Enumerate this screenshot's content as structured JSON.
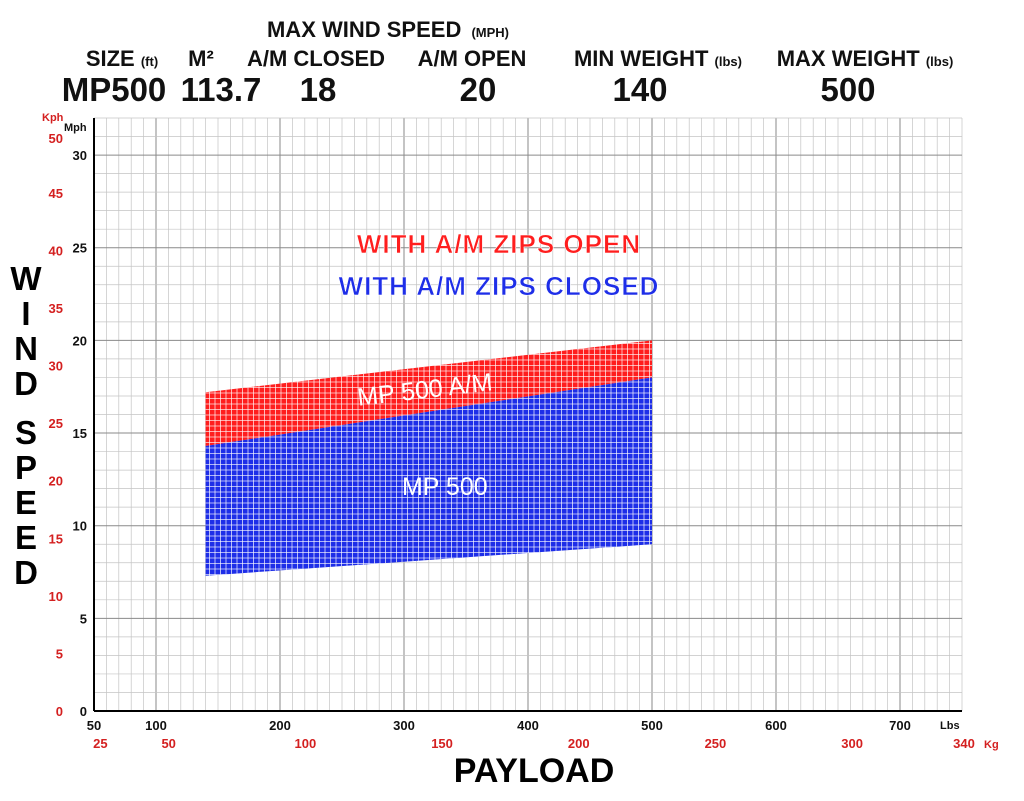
{
  "header": {
    "size_label": "SIZE",
    "size_unit": "(ft)",
    "area_label": "M²",
    "max_wind_label": "MAX WIND SPEED",
    "max_wind_unit": "(MPH)",
    "am_closed_label": "A/M CLOSED",
    "am_open_label": "A/M OPEN",
    "min_weight_label": "MIN WEIGHT",
    "min_weight_unit": "(lbs)",
    "max_weight_label": "MAX WEIGHT",
    "max_weight_unit": "(lbs)",
    "size_value": "MP500",
    "area_value": "113.7",
    "am_closed_value": "18",
    "am_open_value": "20",
    "min_weight_value": "140",
    "max_weight_value": "500"
  },
  "chart_data": {
    "type": "area",
    "title": "",
    "xlabel": "PAYLOAD",
    "ylabel": "WIND SPEED",
    "x_unit": "Lbs",
    "x2_unit": "Kg",
    "y_unit": "Mph",
    "y2_unit": "Kph",
    "xlim": [
      50,
      750
    ],
    "ylim": [
      0,
      32
    ],
    "x_ticks": [
      50,
      100,
      200,
      300,
      400,
      500,
      600,
      700
    ],
    "y_ticks": [
      0,
      5,
      10,
      15,
      20,
      25,
      30
    ],
    "kg_ticks": [
      25,
      50,
      100,
      150,
      200,
      250,
      300,
      340
    ],
    "kph_ticks": [
      0,
      5,
      10,
      15,
      20,
      25,
      30,
      35,
      40,
      45,
      50
    ],
    "grid": true,
    "series": [
      {
        "name": "MP 500 A/M",
        "color": "#ff1e1e",
        "x": [
          140,
          500
        ],
        "lower": [
          14.3,
          18.0
        ],
        "upper": [
          17.2,
          20.0
        ]
      },
      {
        "name": "MP 500",
        "color": "#1e2ee8",
        "x": [
          140,
          500
        ],
        "lower": [
          7.3,
          9.0
        ],
        "upper": [
          14.3,
          18.0
        ]
      }
    ],
    "legend": [
      {
        "text": "WITH A/M ZIPS OPEN",
        "color": "#ff1e1e"
      },
      {
        "text": "WITH A/M ZIPS CLOSED",
        "color": "#1e2ee8"
      }
    ]
  }
}
